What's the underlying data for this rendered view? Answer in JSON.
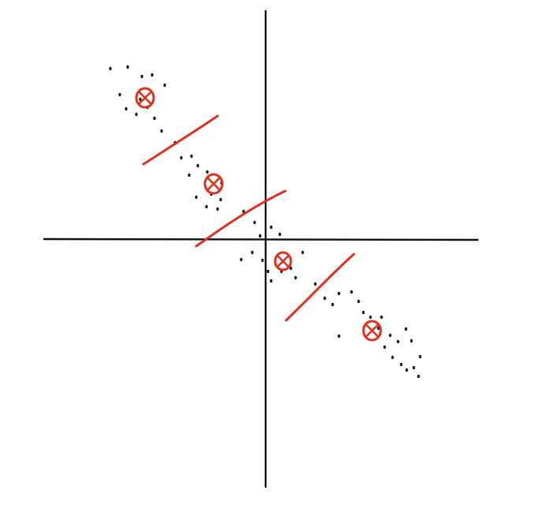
{
  "colors": {
    "background": "#ffffff",
    "axes": "#111111",
    "points": "#111111",
    "annotation": "#e0301e"
  },
  "diagram": {
    "description_type": "hand-drawn scatter of points along a diagonal with 4 cluster centers marked and 3 dividing boundary strokes",
    "cluster_count": 4,
    "boundary_count": 3,
    "center_marker": "circle-with-x"
  }
}
